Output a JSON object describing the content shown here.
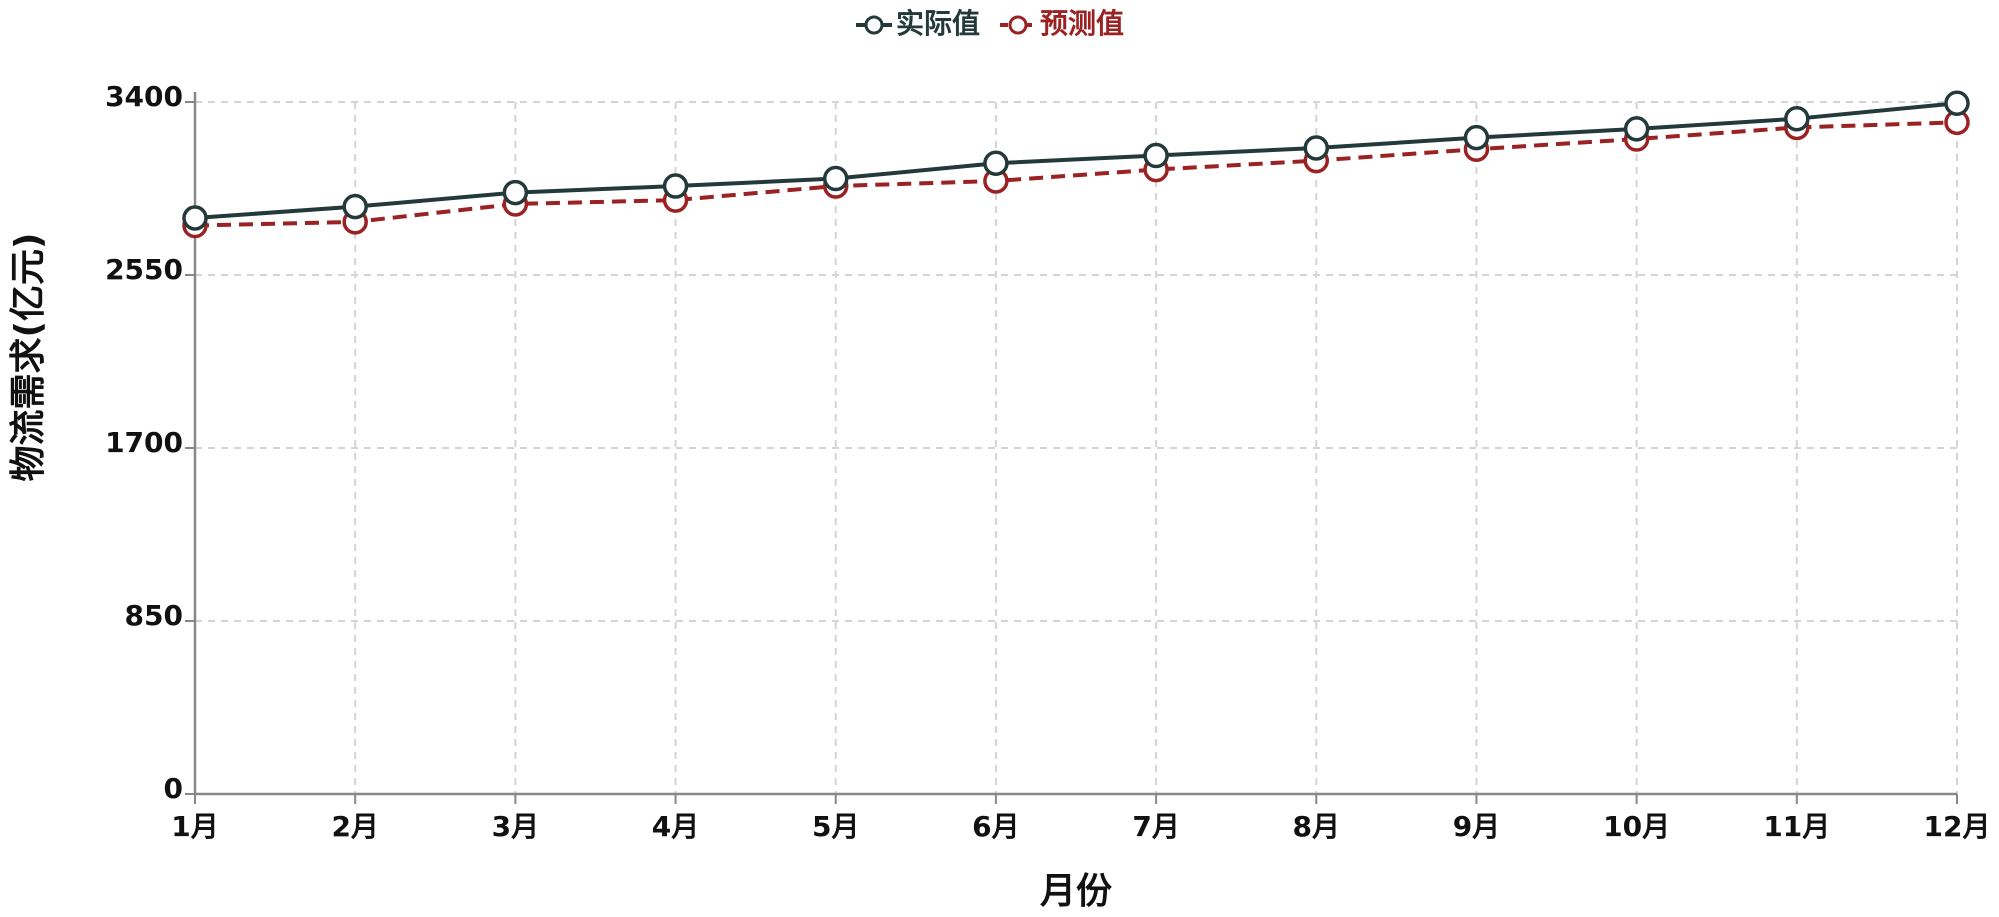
{
  "chart_data": {
    "type": "line",
    "categories": [
      "1月",
      "2月",
      "3月",
      "4月",
      "5月",
      "6月",
      "7月",
      "8月",
      "9月",
      "10月",
      "11月",
      "12月"
    ],
    "series": [
      {
        "name": "实际值",
        "color": "#23393a",
        "dash": false,
        "values": [
          2830,
          2886,
          2955,
          2987,
          3024,
          3099,
          3137,
          3174,
          3225,
          3268,
          3318,
          3394
        ]
      },
      {
        "name": "预测值",
        "color": "#9b2222",
        "dash": true,
        "values": [
          2793,
          2811,
          2899,
          2918,
          2987,
          3012,
          3068,
          3112,
          3168,
          3218,
          3275,
          3300
        ]
      }
    ],
    "xlabel": "月份",
    "ylabel": "物流需求(亿元)",
    "ylim": [
      0,
      3400
    ],
    "yticks": [
      0,
      850,
      1700,
      2550,
      3400
    ],
    "grid": true,
    "legend": "top"
  }
}
